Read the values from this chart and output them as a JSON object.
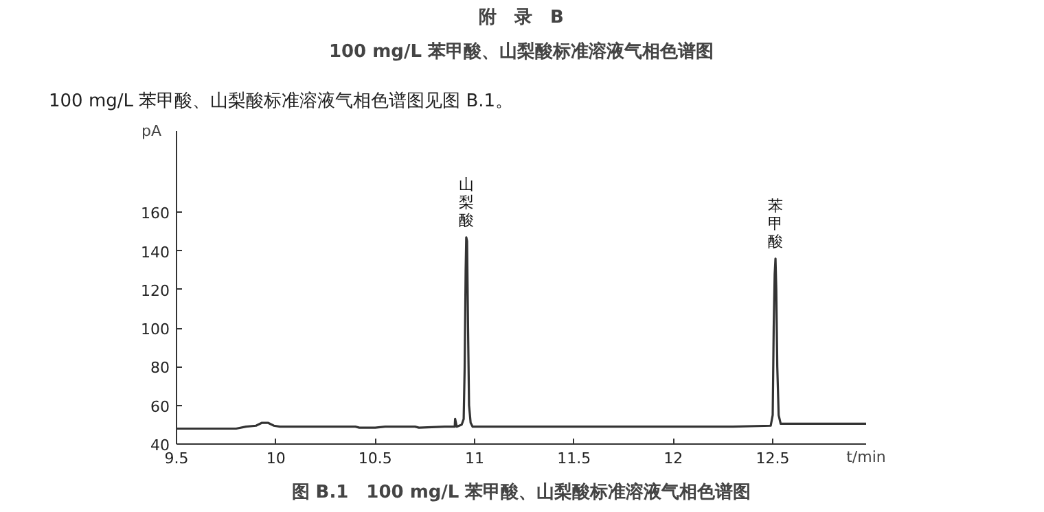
{
  "chart_data": {
    "type": "line",
    "title": "附　录　B",
    "subtitle": "100 mg/L 苯甲酸、山梨酸标准溶液气相色谱图",
    "xlabel": "t/min",
    "ylabel": "pA",
    "x": [
      9.5,
      9.8,
      9.85,
      9.9,
      9.93,
      9.96,
      9.99,
      10.02,
      10.2,
      10.4,
      10.42,
      10.5,
      10.55,
      10.7,
      10.72,
      10.85,
      10.9,
      10.902,
      10.91,
      10.935,
      10.945,
      10.95,
      10.955,
      10.958,
      10.962,
      10.967,
      10.972,
      10.98,
      10.99,
      11.2,
      11.8,
      12.3,
      12.49,
      12.5,
      12.505,
      12.51,
      12.514,
      12.518,
      12.523,
      12.53,
      12.54,
      12.6,
      12.97
    ],
    "series": [
      {
        "color": "#333333",
        "values": [
          48,
          48,
          49,
          49.5,
          51,
          51,
          49.5,
          49,
          49,
          49,
          48.5,
          48.5,
          49,
          49,
          48.5,
          49,
          49,
          53,
          49,
          50,
          53,
          80,
          130,
          147,
          145,
          100,
          60,
          51,
          49,
          49,
          49,
          49,
          49.5,
          55,
          100,
          128,
          136,
          120,
          80,
          55,
          50.5,
          50.5,
          50.5
        ]
      }
    ],
    "xlim": [
      9.5,
      12.97
    ],
    "ylim": [
      40,
      202
    ],
    "xticks": [
      9.5,
      10,
      10.5,
      11,
      11.5,
      12,
      12.5
    ],
    "yticks": [
      40,
      60,
      80,
      100,
      120,
      140,
      160
    ],
    "grid": false,
    "line_style": "solid",
    "annotations": [
      "100 mg/L 苯甲酸、山梨酸标准溶液气相色谱图见图 B.1。",
      "图 B.1　100 mg/L 苯甲酸、山梨酸标准溶液气相色谱图",
      {
        "text": "山梨酸",
        "x": 10.958,
        "y": 147
      },
      {
        "text": "苯甲酸",
        "x": 12.514,
        "y": 136
      }
    ]
  }
}
